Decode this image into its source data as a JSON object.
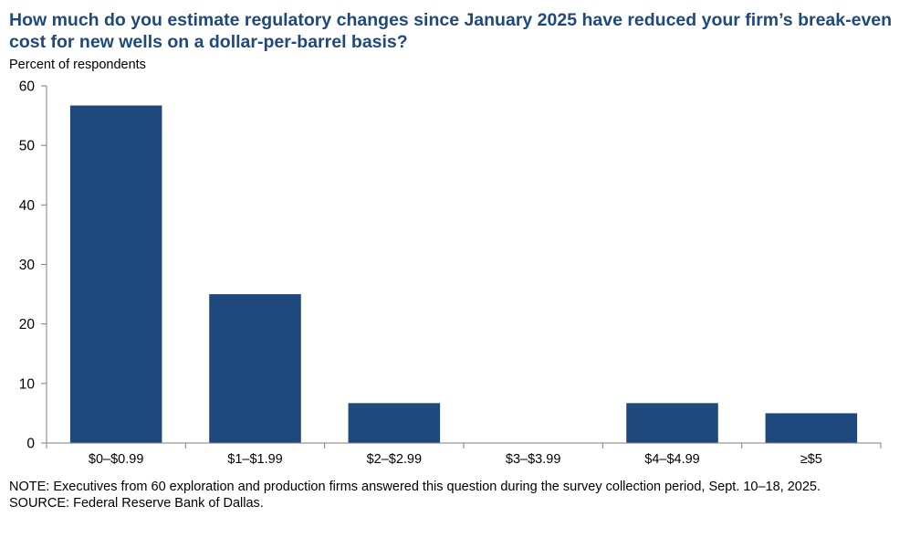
{
  "chart_data": {
    "type": "bar",
    "title": "How much do you estimate regulatory changes since January 2025 have reduced your firm’s break-even cost for new wells on a dollar-per-barrel basis?",
    "ylabel": "Percent of respondents",
    "xlabel": "",
    "categories": [
      "$0–$0.99",
      "$1–$1.99",
      "$2–$2.99",
      "$3–$3.99",
      "$4–$4.99",
      "≥$5"
    ],
    "values": [
      56.7,
      25.0,
      6.7,
      0,
      6.7,
      5.0
    ],
    "ylim": [
      0,
      60
    ],
    "yticks": [
      "0",
      "10",
      "20",
      "30",
      "40",
      "50",
      "60"
    ],
    "grid": false,
    "bar_color": "#1f497d"
  },
  "footer": {
    "note": "NOTE: Executives from 60 exploration and production firms answered this question during the survey collection period, Sept. 10–18, 2025.",
    "source": "SOURCE: Federal Reserve Bank of Dallas."
  }
}
